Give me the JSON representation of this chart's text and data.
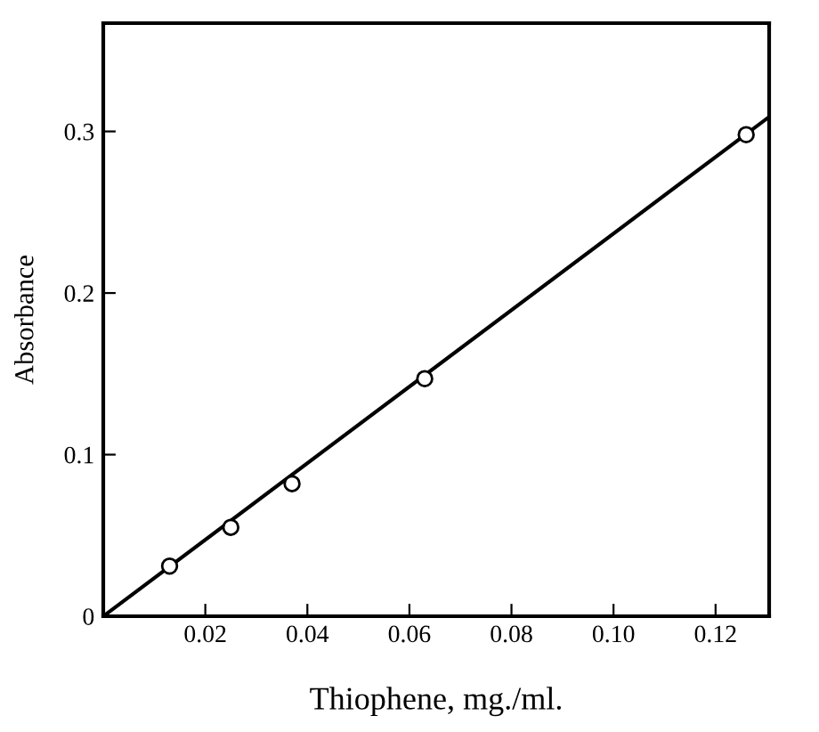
{
  "chart_data": {
    "type": "scatter",
    "xlabel": "Thiophene, mg./ml.",
    "ylabel": "Absorbance",
    "xlim": [
      0,
      0.1305
    ],
    "ylim": [
      0,
      0.367
    ],
    "xticks": [
      {
        "value": 0.02,
        "label": "0.02"
      },
      {
        "value": 0.04,
        "label": "0.04"
      },
      {
        "value": 0.06,
        "label": "0.06"
      },
      {
        "value": 0.08,
        "label": "0.08"
      },
      {
        "value": 0.1,
        "label": "0.10"
      },
      {
        "value": 0.12,
        "label": "0.12"
      }
    ],
    "yticks": [
      0,
      0.1,
      0.2,
      0.3
    ],
    "grid": false,
    "legend": false,
    "series": [
      {
        "marker": "circle",
        "color": "#000000",
        "x": [
          0.013,
          0.025,
          0.037,
          0.063,
          0.126
        ],
        "values": [
          0.031,
          0.055,
          0.082,
          0.147,
          0.298
        ]
      },
      {
        "type": "line",
        "marker": "none",
        "line_style": "solid",
        "color": "#000000",
        "x": [
          0,
          0.1305
        ],
        "values": [
          0,
          0.309
        ]
      }
    ]
  }
}
